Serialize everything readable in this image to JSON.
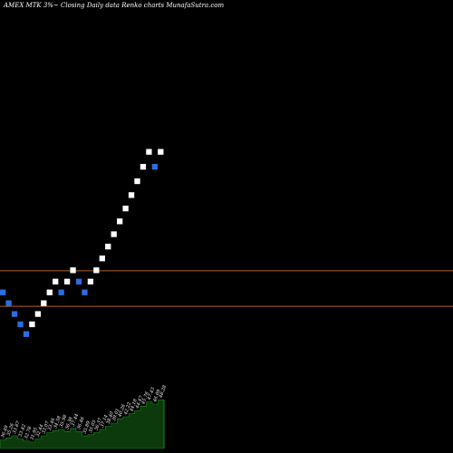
{
  "chart_data": {
    "type": "renko",
    "title": "AMEX MTK 3%~ Closing Daily data Renko charts MunafaSutra.com",
    "colors": {
      "background": "#000000",
      "up_brick": "#ffffff",
      "down_brick": "#2a6fe0",
      "reference_line": "#b0602a",
      "volume_area": "#0c3a0c",
      "volume_outline": "#1e8a1e"
    },
    "y_range": [
      20,
      64
    ],
    "reference_lines": [
      34.25,
      37.7
    ],
    "bricks": [
      {
        "dir": "down",
        "value": 35.6
      },
      {
        "dir": "down",
        "value": 34.55
      },
      {
        "dir": "down",
        "value": 33.5
      },
      {
        "dir": "down",
        "value": 32.5
      },
      {
        "dir": "down",
        "value": 31.55
      },
      {
        "dir": "up",
        "value": 32.5
      },
      {
        "dir": "up",
        "value": 33.5
      },
      {
        "dir": "up",
        "value": 34.55
      },
      {
        "dir": "up",
        "value": 35.6
      },
      {
        "dir": "up",
        "value": 36.65
      },
      {
        "dir": "down",
        "value": 35.6
      },
      {
        "dir": "up",
        "value": 36.65
      },
      {
        "dir": "up",
        "value": 37.75
      },
      {
        "dir": "down",
        "value": 36.65
      },
      {
        "dir": "down",
        "value": 35.6
      },
      {
        "dir": "up",
        "value": 36.65
      },
      {
        "dir": "up",
        "value": 37.75
      },
      {
        "dir": "up",
        "value": 38.9
      },
      {
        "dir": "up",
        "value": 40.05
      },
      {
        "dir": "up",
        "value": 41.25
      },
      {
        "dir": "up",
        "value": 42.5
      },
      {
        "dir": "up",
        "value": 43.75
      },
      {
        "dir": "up",
        "value": 45.05
      },
      {
        "dir": "up",
        "value": 46.4
      },
      {
        "dir": "up",
        "value": 47.8
      },
      {
        "dir": "up",
        "value": 49.25
      },
      {
        "dir": "down",
        "value": 47.8
      },
      {
        "dir": "up",
        "value": 49.25
      }
    ],
    "brick_labels": [
      "36.49",
      "35.26",
      "33.87",
      "33.42",
      "32.78",
      "31.95",
      "32.44",
      "33.07",
      "33.46",
      "34.58",
      "35.98",
      "36.38",
      "37.44",
      "36.46",
      "35.89",
      "35.05",
      "36.37",
      "37.14",
      "38.40",
      "39.01",
      "40.26",
      "42.22",
      "44.18",
      "44.47",
      "45.76",
      "47.43",
      "46.09",
      "48.28"
    ],
    "volume": [
      8,
      10,
      12,
      9,
      7,
      6,
      9,
      12,
      15,
      17,
      18,
      16,
      19,
      16,
      12,
      13,
      15,
      18,
      21,
      24,
      28,
      30,
      33,
      36,
      40,
      44,
      42,
      46
    ]
  }
}
